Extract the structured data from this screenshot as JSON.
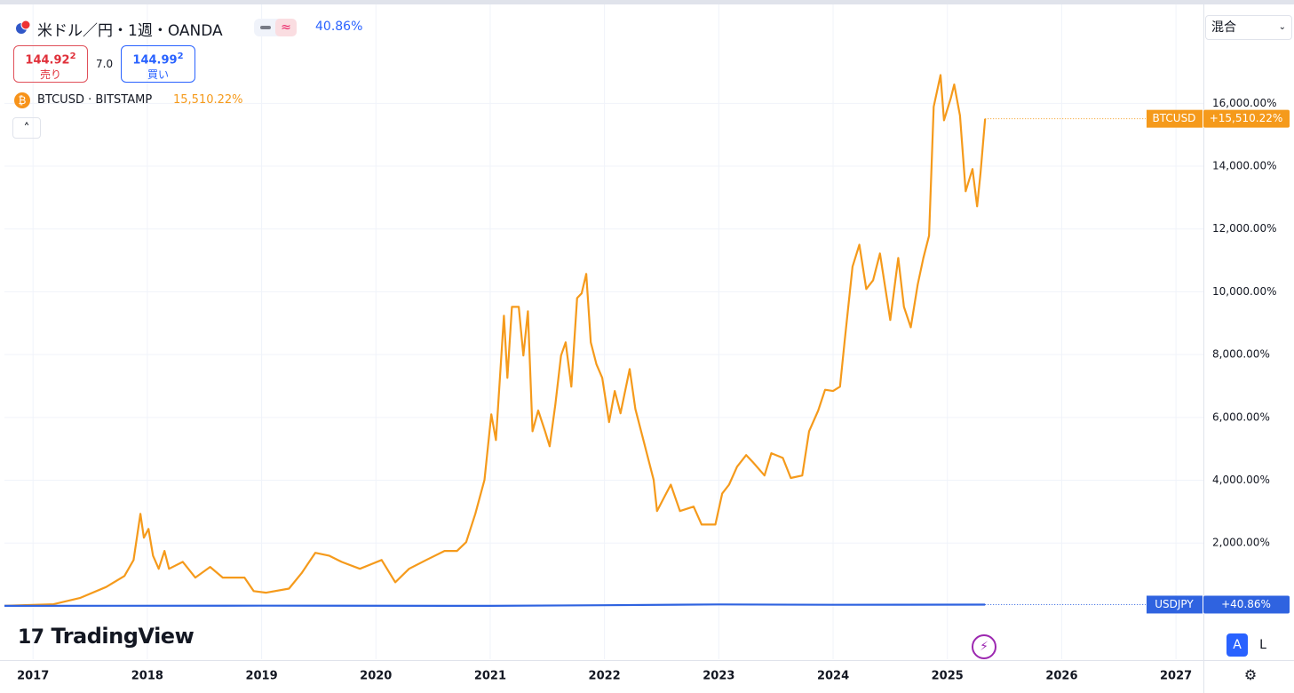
{
  "ui": {
    "symbol_title": "米ドル／円・1週・OANDA",
    "symbol_change": "40.86%",
    "sell_price": "144.92",
    "sell_price_sup": "2",
    "sell_label": "売り",
    "spread": "7.0",
    "buy_price": "144.99",
    "buy_price_sup": "2",
    "buy_label": "買い",
    "compare_label": "BTCUSD · BITSTAMP",
    "compare_change": "15,510.22%",
    "scale_mode": "混合",
    "brand": "TradingView",
    "auto_button": "A",
    "log_button": "L"
  },
  "chart_data": {
    "type": "line",
    "grid": true,
    "xlim": [
      2016.75,
      2027.24
    ],
    "xticks": [
      2017,
      2018,
      2019,
      2020,
      2021,
      2022,
      2023,
      2024,
      2025,
      2026,
      2027
    ],
    "ylim": [
      -1700,
      19150
    ],
    "yticks": [
      {
        "value": 2000,
        "label": "2,000.00%"
      },
      {
        "value": 4000,
        "label": "4,000.00%"
      },
      {
        "value": 6000,
        "label": "6,000.00%"
      },
      {
        "value": 8000,
        "label": "8,000.00%"
      },
      {
        "value": 10000,
        "label": "10,000.00%"
      },
      {
        "value": 12000,
        "label": "12,000.00%"
      },
      {
        "value": 14000,
        "label": "14,000.00%"
      },
      {
        "value": 16000,
        "label": "16,000.00%"
      }
    ],
    "series": [
      {
        "name": "BTCUSD",
        "color": "#f59a1b",
        "last_label": "+15,510.22%",
        "x": [
          2016.75,
          2017.18,
          2017.41,
          2017.64,
          2017.8,
          2017.88,
          2017.94,
          2017.97,
          2018.01,
          2018.05,
          2018.1,
          2018.15,
          2018.19,
          2018.31,
          2018.42,
          2018.55,
          2018.66,
          2018.85,
          2018.93,
          2019.04,
          2019.24,
          2019.35,
          2019.47,
          2019.59,
          2019.7,
          2019.86,
          2020.05,
          2020.17,
          2020.29,
          2020.44,
          2020.6,
          2020.71,
          2020.79,
          2020.87,
          2020.95,
          2021.01,
          2021.05,
          2021.12,
          2021.15,
          2021.19,
          2021.25,
          2021.29,
          2021.33,
          2021.37,
          2021.42,
          2021.48,
          2021.52,
          2021.57,
          2021.62,
          2021.66,
          2021.71,
          2021.76,
          2021.8,
          2021.84,
          2021.88,
          2021.93,
          2021.98,
          2022.04,
          2022.09,
          2022.14,
          2022.22,
          2022.27,
          2022.35,
          2022.43,
          2022.46,
          2022.54,
          2022.58,
          2022.66,
          2022.78,
          2022.85,
          2022.97,
          2023.03,
          2023.09,
          2023.16,
          2023.24,
          2023.3,
          2023.4,
          2023.46,
          2023.56,
          2023.63,
          2023.73,
          2023.79,
          2023.87,
          2023.93,
          2024.0,
          2024.06,
          2024.1,
          2024.17,
          2024.23,
          2024.29,
          2024.35,
          2024.41,
          2024.5,
          2024.57,
          2024.62,
          2024.68,
          2024.74,
          2024.79,
          2024.84,
          2024.88,
          2024.94,
          2024.97,
          2025.03,
          2025.06,
          2025.11,
          2025.16,
          2025.22,
          2025.26,
          2025.29,
          2025.33
        ],
        "values": [
          0,
          50,
          250,
          600,
          950,
          1460,
          2930,
          2170,
          2450,
          1600,
          1180,
          1750,
          1180,
          1400,
          900,
          1240,
          900,
          900,
          470,
          420,
          550,
          1040,
          1690,
          1600,
          1400,
          1180,
          1460,
          750,
          1180,
          1460,
          1750,
          1750,
          2030,
          2930,
          4010,
          6100,
          5280,
          9240,
          7260,
          9520,
          9520,
          7970,
          9380,
          5560,
          6220,
          5560,
          5080,
          6410,
          7970,
          8390,
          6980,
          9800,
          9950,
          10570,
          8390,
          7690,
          7260,
          5850,
          6840,
          6130,
          7540,
          6270,
          5140,
          4010,
          3020,
          3580,
          3860,
          3020,
          3160,
          2590,
          2590,
          3580,
          3860,
          4430,
          4800,
          4570,
          4150,
          4860,
          4710,
          4070,
          4150,
          5560,
          6220,
          6880,
          6840,
          6980,
          8390,
          10800,
          11500,
          10090,
          10370,
          11220,
          9100,
          11080,
          9520,
          8870,
          10230,
          11080,
          11790,
          15890,
          16900,
          15460,
          16170,
          16600,
          15610,
          13200,
          13910,
          12720,
          13770,
          15510.22
        ]
      },
      {
        "name": "USDJPY",
        "color": "#2f63e0",
        "last_label": "+40.86%",
        "x": [
          2016.75,
          2019.0,
          2021.0,
          2022.0,
          2023.0,
          2024.0,
          2025.33
        ],
        "values": [
          0,
          5,
          0,
          20,
          45,
          35,
          40.86
        ]
      }
    ]
  }
}
